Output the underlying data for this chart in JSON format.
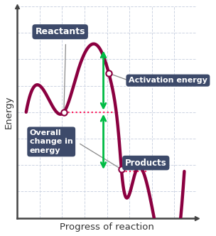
{
  "xlabel": "Progress of reaction",
  "ylabel": "Energy",
  "bg_color": "#ffffff",
  "grid_color": "#c8d0e0",
  "curve_color": "#8b0040",
  "curve_linewidth": 3.2,
  "reactant_level": 0.5,
  "product_level": 0.22,
  "peak_level": 0.8,
  "label_bg_color": "#3d4a6a",
  "label_text_color": "#ffffff",
  "arrow_color": "#00bb44",
  "dashed_color": "#ff1155",
  "reactants_label": "Reactants",
  "activation_label": "Activation energy",
  "overall_label": "Overall\nchange in\nenergy",
  "products_label": "Products"
}
